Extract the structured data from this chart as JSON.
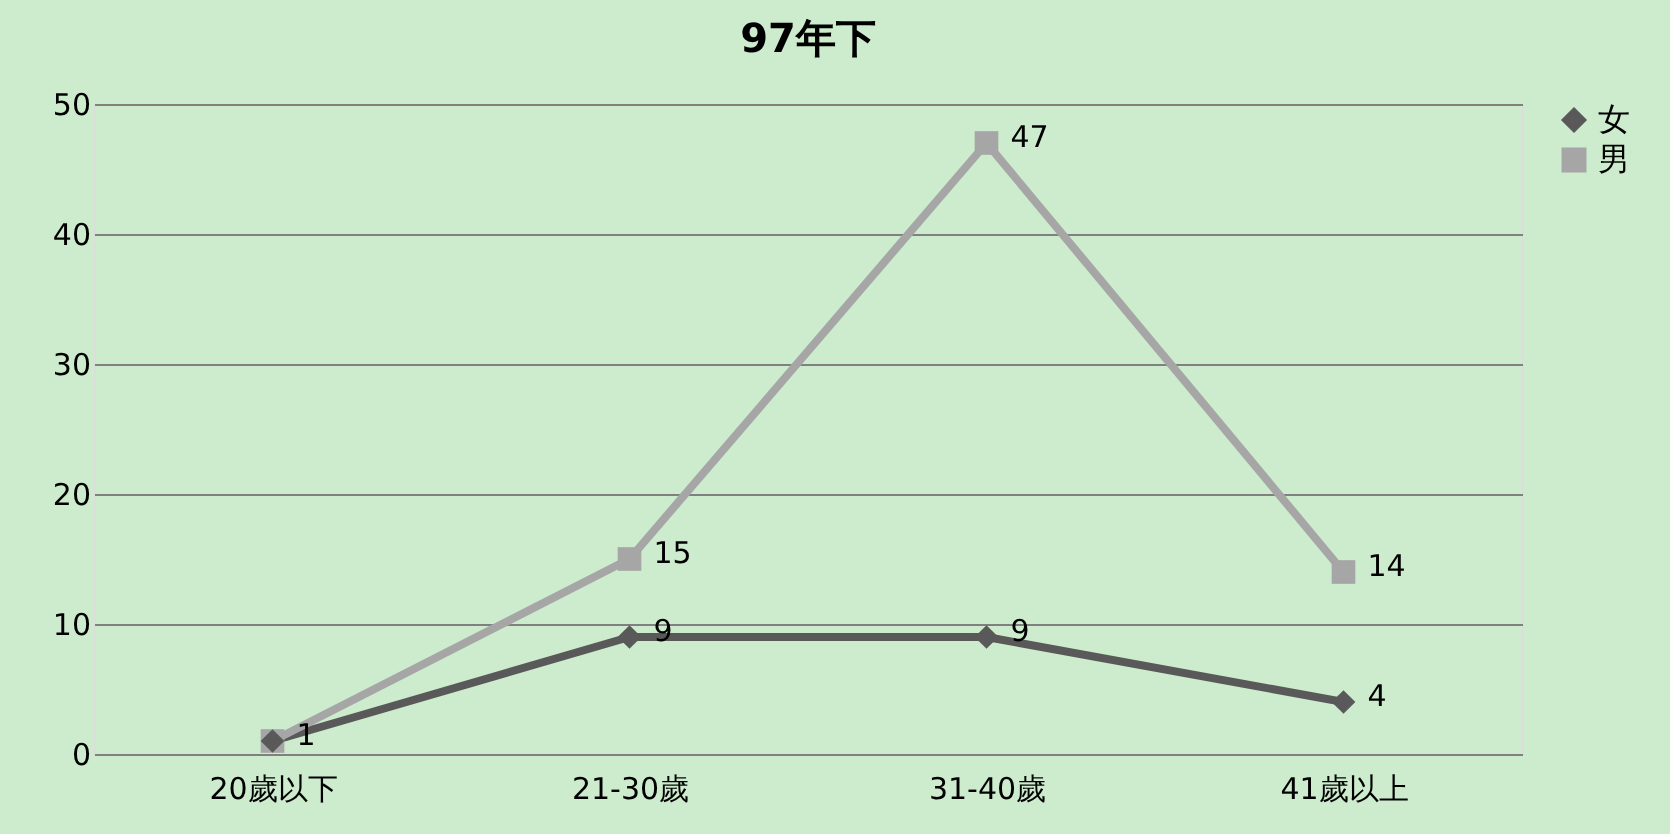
{
  "chart_data": {
    "type": "line",
    "title": "97年下",
    "categories": [
      "20歲以下",
      "21-30歲",
      "31-40歲",
      "41歲以上"
    ],
    "series": [
      {
        "name": "女",
        "color": "#595959",
        "marker": "diamond",
        "values": [
          1,
          9,
          9,
          4
        ],
        "value_labels": [
          null,
          "9",
          "9",
          "4"
        ]
      },
      {
        "name": "男",
        "color": "#a6a6a6",
        "marker": "square",
        "values": [
          1,
          15,
          47,
          14
        ],
        "value_labels": [
          "1",
          "15",
          "47",
          "14"
        ]
      }
    ],
    "ylim": [
      0,
      50
    ],
    "yticks": [
      0,
      10,
      20,
      30,
      40,
      50
    ],
    "grid": "y",
    "legend": "right",
    "line_style": "solid"
  }
}
